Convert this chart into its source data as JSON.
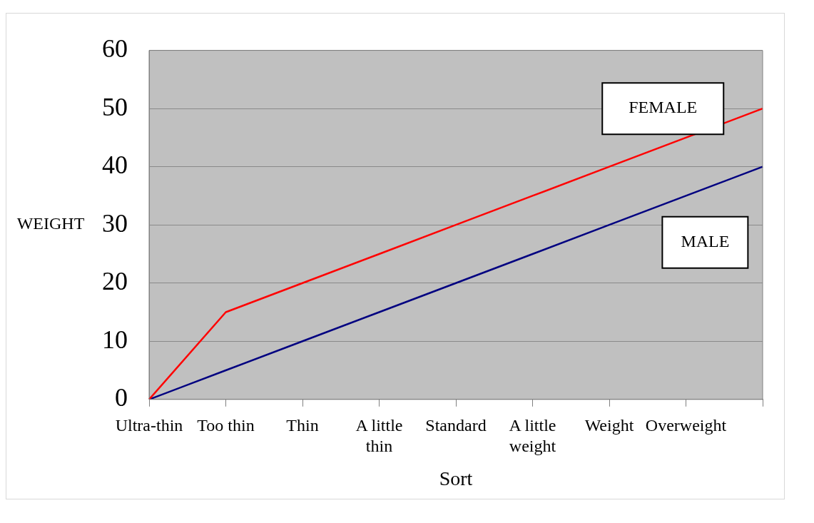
{
  "chart_data": {
    "type": "line",
    "xlabel": "Sort",
    "ylabel": "WEIGHT",
    "categories": [
      "Ultra-thin",
      "Too thin",
      "Thin",
      "A little thin",
      "Standard",
      "A little weight",
      "Weight",
      "Overweight",
      null
    ],
    "series": [
      {
        "name": "FEMALE",
        "color": "#ff0000",
        "values": [
          0,
          15,
          20,
          25,
          30,
          35,
          40,
          45,
          50
        ]
      },
      {
        "name": "MALE",
        "color": "#000080",
        "values": [
          0,
          5,
          10,
          15,
          20,
          25,
          30,
          35,
          40
        ]
      }
    ],
    "ylim": [
      0,
      60
    ],
    "yticks": [
      0,
      10,
      20,
      30,
      40,
      50,
      60
    ],
    "grid": "y",
    "legend": false,
    "marker": "none",
    "line_style": "solid"
  }
}
